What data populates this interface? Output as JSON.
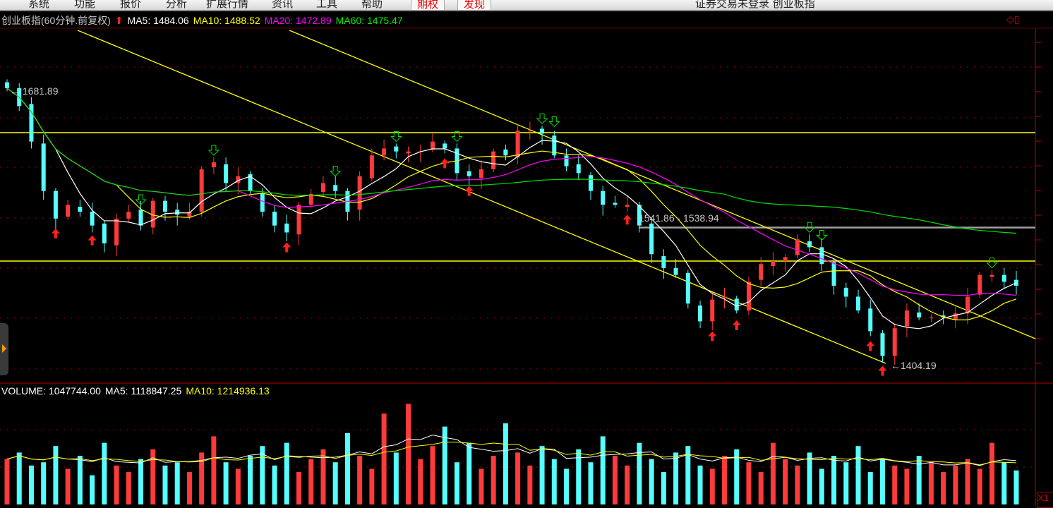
{
  "menu": {
    "items": [
      "系统",
      "功能",
      "报价",
      "分析",
      "扩展行情",
      "资讯",
      "工具",
      "帮助"
    ],
    "highlight": [
      "期权",
      "发现"
    ],
    "window_title": "证券交易未登录   创业板指"
  },
  "header": {
    "title": "创业板指(60分钟.前复权)",
    "ma5": "MA5: 1484.06",
    "ma10": "MA10: 1488.52",
    "ma20": "MA20: 1472.89",
    "ma60": "MA60: 1475.47"
  },
  "volume_header": {
    "volume": "VOLUME: 1047744.00",
    "ma5": "MA5: 1118847.25",
    "ma10": "MA10: 1214936.13"
  },
  "colors": {
    "up": "#ff3a3a",
    "down": "#54ffff",
    "ma5": "#ffffff",
    "ma10": "#ffff00",
    "ma20": "#ff00ff",
    "ma60": "#00e000",
    "drawing": "#ffff00",
    "axis": "#c00000"
  },
  "scale_button": "X1",
  "chart_data": {
    "type": "candlestick",
    "title": "创业板指(60分钟.前复权)",
    "annotations": {
      "high": "1681.89",
      "low": "1404.19",
      "range_label": "1541.86 - 1538.94"
    },
    "horizontal_lines": [
      1639,
      1509,
      1543
    ],
    "closes": [
      1684,
      1666,
      1630,
      1580,
      1552,
      1566,
      1559,
      1545,
      1527,
      1552,
      1559,
      1545,
      1570,
      1559,
      1556,
      1559,
      1602,
      1609,
      1588,
      1595,
      1580,
      1559,
      1545,
      1538,
      1566,
      1577,
      1588,
      1580,
      1559,
      1595,
      1616,
      1623,
      1620,
      1620,
      1620,
      1630,
      1623,
      1598,
      1595,
      1602,
      1620,
      1616,
      1641,
      1641,
      1638,
      1616,
      1605,
      1598,
      1580,
      1566,
      1566,
      1566,
      1545,
      1516,
      1502,
      1495,
      1466,
      1448,
      1470,
      1473,
      1459,
      1488,
      1506,
      1509,
      1513,
      1531,
      1523,
      1506,
      1484,
      1473,
      1459,
      1438,
      1413,
      1441,
      1459,
      1452,
      1452,
      1452,
      1456,
      1473,
      1495,
      1495,
      1488,
      1484
    ],
    "volumes": [
      1.4,
      1.6,
      1.2,
      1.3,
      1.8,
      1.1,
      1.5,
      0.9,
      1.9,
      1.2,
      1.0,
      1.4,
      1.7,
      1.2,
      1.3,
      1.0,
      1.6,
      2.1,
      1.3,
      1.1,
      1.5,
      1.8,
      1.2,
      1.9,
      1.0,
      1.4,
      1.7,
      1.3,
      2.2,
      1.5,
      1.1,
      2.8,
      1.6,
      3.1,
      1.4,
      1.8,
      2.4,
      1.3,
      1.9,
      1.1,
      1.5,
      2.5,
      1.6,
      1.2,
      1.8,
      1.4,
      1.1,
      1.7,
      1.3,
      2.1,
      1.5,
      1.2,
      1.9,
      1.4,
      1.0,
      1.6,
      1.8,
      1.2,
      1.1,
      1.5,
      1.7,
      1.3,
      1.0,
      1.9,
      1.4,
      1.2,
      1.6,
      1.1,
      1.5,
      1.3,
      1.8,
      1.0,
      1.4,
      1.2,
      1.1,
      1.5,
      1.3,
      1.0,
      1.2,
      1.4,
      1.1,
      1.9,
      1.3,
      1.05
    ],
    "up_signals": [
      4,
      7,
      23,
      36,
      38,
      51,
      58,
      60,
      71,
      72
    ],
    "down_signals": [
      11,
      17,
      27,
      32,
      37,
      44,
      45,
      66,
      67,
      81
    ]
  }
}
